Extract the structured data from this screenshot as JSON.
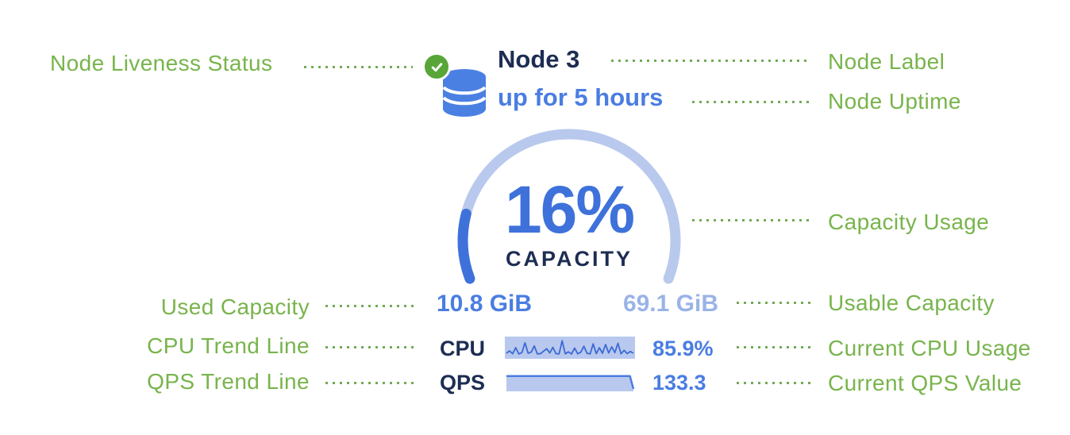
{
  "annotations": {
    "node_liveness_status": "Node Liveness Status",
    "node_label": "Node Label",
    "node_uptime": "Node Uptime",
    "capacity_usage": "Capacity Usage",
    "used_capacity": "Used Capacity",
    "usable_capacity": "Usable Capacity",
    "cpu_trend_line": "CPU Trend Line",
    "current_cpu_usage": "Current CPU Usage",
    "qps_trend_line": "QPS Trend Line",
    "current_qps_value": "Current QPS Value"
  },
  "node": {
    "label": "Node 3",
    "uptime": "up for 5 hours",
    "liveness_status": "live",
    "icons": {
      "liveness": "check-circle-icon",
      "node": "database-icon"
    }
  },
  "capacity": {
    "percent_label": "16%",
    "percent_value": 16,
    "caption": "CAPACITY",
    "used_label": "10.8 GiB",
    "usable_label": "69.1 GiB"
  },
  "metrics": {
    "cpu_label": "CPU",
    "cpu_value": "85.9%",
    "qps_label": "QPS",
    "qps_value": "133.3"
  },
  "colors": {
    "annotation_green": "#78b44c",
    "leader_dot_green": "#72ab55",
    "liveness_green": "#57a637",
    "node_blue": "#4a7de2",
    "navy_text": "#1d2d52",
    "gauge_track": "#b9c9ed",
    "gauge_fill": "#3e72da",
    "usable_light_blue": "#9ab3e8",
    "spark_background": "#b9c8ee",
    "spark_line": "#3a6ad4"
  },
  "chart_data": [
    {
      "type": "line",
      "name": "cpu-trend-sparkline",
      "label": "CPU utilization trend",
      "current": "85.9%",
      "ylim": [
        0,
        1
      ],
      "values": [
        0.18,
        0.32,
        0.15,
        0.5,
        0.14,
        0.22,
        0.78,
        0.18,
        0.24,
        0.6,
        0.14,
        0.16,
        0.3,
        0.44,
        0.2,
        0.52,
        0.16,
        0.14,
        0.9,
        0.15,
        0.26,
        0.14,
        0.48,
        0.15,
        0.24,
        0.58,
        0.18,
        0.14,
        0.72,
        0.16,
        0.5,
        0.18,
        0.68,
        0.2,
        0.55,
        0.22,
        0.75,
        0.15,
        0.35,
        0.16,
        0.28,
        0.18
      ]
    },
    {
      "type": "area",
      "name": "qps-trend-sparkline",
      "label": "QPS trend",
      "current": "133.3",
      "ylim": [
        0,
        1
      ],
      "values": [
        0.78,
        0.78,
        0.78,
        0.78,
        0.78,
        0.78,
        0.78,
        0.78,
        0.78,
        0.78,
        0.78,
        0.78,
        0.78,
        0.78,
        0.78,
        0.78,
        0.78,
        0.78,
        0.78,
        0.78,
        0.78,
        0.78,
        0.78,
        0.78,
        0.78,
        0.78,
        0.78,
        0.78,
        0.78,
        0.78,
        0.78,
        0.78,
        0.78,
        0.78,
        0.78,
        0.78,
        0.05
      ]
    }
  ]
}
